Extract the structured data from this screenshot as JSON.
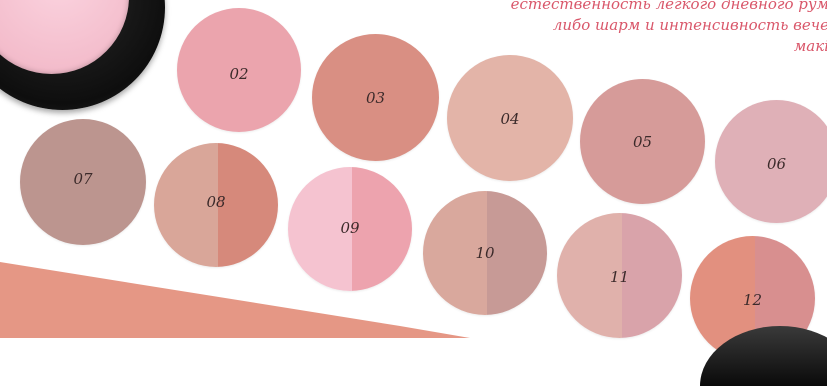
{
  "description_lines": [
    "естественность легкого дневного рум",
    "либо шарм и интенсивность вече",
    "макі"
  ],
  "swatches": [
    {
      "label": "02",
      "color": "#eba4ad"
    },
    {
      "label": "03",
      "color": "#d98f83"
    },
    {
      "label": "04",
      "color": "#e3b4a8"
    },
    {
      "label": "05",
      "color": "#d69b99"
    },
    {
      "label": "06",
      "color": "#dfb0b7"
    },
    {
      "label": "07",
      "color": "#bc958f"
    },
    {
      "label": "08",
      "colors": [
        "#d9a699",
        "#d6897b"
      ]
    },
    {
      "label": "09",
      "colors": [
        "#f5c3d0",
        "#eda3ae"
      ]
    },
    {
      "label": "10",
      "colors": [
        "#d9a89d",
        "#c79a96"
      ]
    },
    {
      "label": "11",
      "colors": [
        "#e0b1ab",
        "#d9a3aa"
      ]
    },
    {
      "label": "12",
      "colors": [
        "#e2907f",
        "#d88f8f"
      ]
    }
  ],
  "colors": {
    "text_accent": "#d9576a",
    "swoosh": "#e4917e",
    "compact_pan": "#f3bccb"
  }
}
